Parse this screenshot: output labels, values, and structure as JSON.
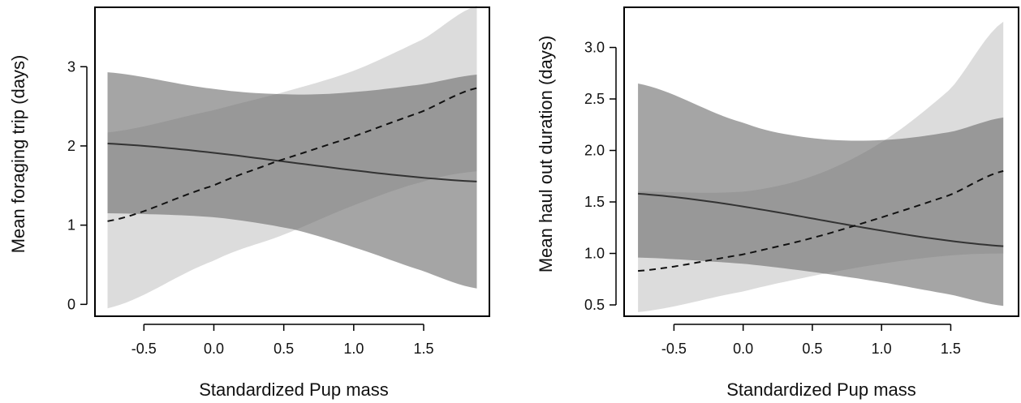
{
  "colors": {
    "light_band": "#dcdcdc",
    "dark_band": "#6e6e6e",
    "overlap_band": "#a4a4a4",
    "solid_line": "#333333",
    "dashed_line": "#111111",
    "frame": "#000000"
  },
  "chart_data": [
    {
      "type": "line",
      "title": "",
      "xlabel": "Standardized Pup mass",
      "ylabel": "Mean foraging trip (days)",
      "xlim": [
        -0.85,
        1.97
      ],
      "ylim": [
        -0.15,
        3.75
      ],
      "xticks": [
        -0.5,
        0.0,
        0.5,
        1.0,
        1.5
      ],
      "xtick_labels": [
        "-0.5",
        "0.0",
        "0.5",
        "1.0",
        "1.5"
      ],
      "yticks": [
        0,
        1,
        2,
        3
      ],
      "ytick_labels": [
        "0",
        "1",
        "2",
        "3"
      ],
      "legend": "none",
      "grid": false,
      "series": [
        {
          "style": "solid",
          "x": [
            -0.76,
            1.88
          ],
          "y": [
            2.03,
            1.55
          ],
          "ci_color": "dark",
          "ci_lower": {
            "x": [
              -0.76,
              0.0,
              0.56,
              1.0,
              1.5,
              1.88
            ],
            "y": [
              1.15,
              1.1,
              0.95,
              0.72,
              0.42,
              0.2
            ]
          },
          "ci_upper": {
            "x": [
              -0.76,
              0.0,
              0.56,
              1.0,
              1.5,
              1.88
            ],
            "y": [
              2.93,
              2.72,
              2.65,
              2.68,
              2.78,
              2.9
            ]
          }
        },
        {
          "style": "dashed",
          "x": [
            -0.76,
            0.0,
            0.44,
            1.0,
            1.5,
            1.88
          ],
          "y": [
            1.05,
            1.5,
            1.8,
            2.12,
            2.44,
            2.73
          ],
          "ci_color": "light",
          "ci_lower": {
            "x": [
              -0.76,
              0.0,
              0.5,
              1.0,
              1.5,
              1.88
            ],
            "y": [
              -0.05,
              0.55,
              0.88,
              1.25,
              1.55,
              1.68
            ]
          },
          "ci_upper": {
            "x": [
              -0.76,
              0.0,
              0.5,
              1.0,
              1.5,
              1.88
            ],
            "y": [
              2.17,
              2.45,
              2.68,
              2.95,
              3.35,
              3.77
            ]
          }
        }
      ]
    },
    {
      "type": "line",
      "title": "",
      "xlabel": "Standardized Pup mass",
      "ylabel": "Mean haul out duration (days)",
      "xlim": [
        -0.86,
        1.99
      ],
      "ylim": [
        0.39,
        3.39
      ],
      "xticks": [
        -0.5,
        0.0,
        0.5,
        1.0,
        1.5
      ],
      "xtick_labels": [
        "-0.5",
        "0.0",
        "0.5",
        "1.0",
        "1.5"
      ],
      "yticks": [
        0.5,
        1.0,
        1.5,
        2.0,
        2.5,
        3.0
      ],
      "ytick_labels": [
        "0.5",
        "1.0",
        "1.5",
        "2.0",
        "2.5",
        "3.0"
      ],
      "legend": "none",
      "grid": false,
      "series": [
        {
          "style": "solid",
          "x": [
            -0.76,
            1.88
          ],
          "y": [
            1.58,
            1.07
          ],
          "ci_color": "dark",
          "ci_lower": {
            "x": [
              -0.76,
              0.0,
              0.5,
              1.0,
              1.5,
              1.88
            ],
            "y": [
              0.96,
              0.9,
              0.82,
              0.72,
              0.6,
              0.49
            ]
          },
          "ci_upper": {
            "x": [
              -0.76,
              0.0,
              0.5,
              1.0,
              1.5,
              1.88
            ],
            "y": [
              2.65,
              2.27,
              2.12,
              2.1,
              2.18,
              2.32
            ]
          }
        },
        {
          "style": "dashed",
          "x": [
            -0.76,
            0.0,
            0.5,
            1.0,
            1.5,
            1.88
          ],
          "y": [
            0.83,
            0.99,
            1.15,
            1.35,
            1.57,
            1.8
          ],
          "ci_color": "light",
          "ci_lower": {
            "x": [
              -0.76,
              0.0,
              0.5,
              1.0,
              1.5,
              1.88
            ],
            "y": [
              0.43,
              0.63,
              0.78,
              0.9,
              0.98,
              1.0
            ]
          },
          "ci_upper": {
            "x": [
              -0.76,
              0.0,
              0.5,
              1.0,
              1.5,
              1.88
            ],
            "y": [
              1.6,
              1.6,
              1.75,
              2.08,
              2.6,
              3.25
            ]
          }
        }
      ]
    }
  ]
}
